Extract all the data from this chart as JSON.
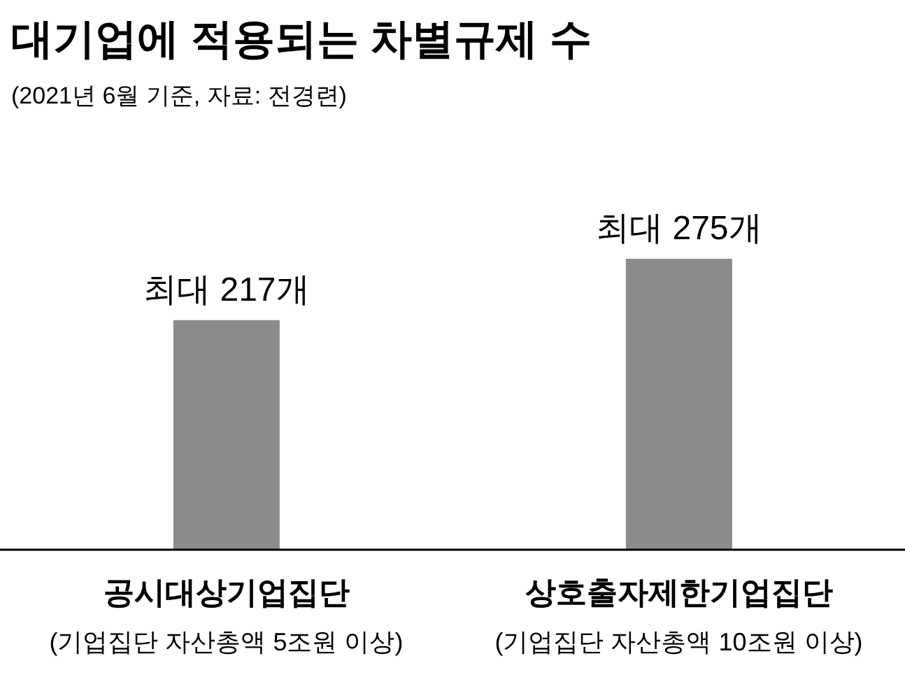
{
  "chart_data": {
    "type": "bar",
    "title": "대기업에 적용되는 차별규제 수",
    "subtitle": "(2021년 6월 기준, 자료: 전경련)",
    "categories": [
      "공시대상기업집단\n(기업집단 자산총액 5조원 이상)",
      "상호출자제한기업집단\n(기업집단 자산총액 10조원 이상)"
    ],
    "values": [
      217,
      275
    ],
    "value_labels": [
      "최대 217개",
      "최대 275개"
    ],
    "color": "#8c8c8c"
  }
}
